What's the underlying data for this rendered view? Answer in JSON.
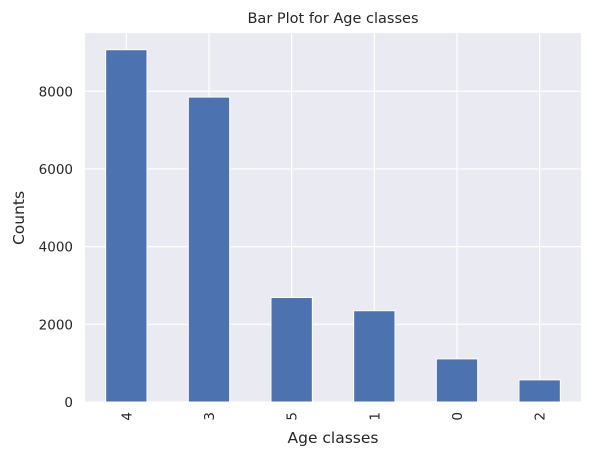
{
  "chart_data": {
    "type": "bar",
    "title": "Bar Plot for Age classes",
    "xlabel": "Age classes",
    "ylabel": "Counts",
    "categories": [
      "4",
      "3",
      "5",
      "1",
      "0",
      "2"
    ],
    "values": [
      9070,
      7850,
      2690,
      2350,
      1110,
      570
    ],
    "ylim": [
      0,
      9500
    ],
    "yticks": [
      0,
      2000,
      4000,
      6000,
      8000
    ],
    "ytick_labels": [
      "0",
      "2000",
      "4000",
      "6000",
      "8000"
    ],
    "grid": true,
    "xtick_rotation": "vertical",
    "colors": {
      "bar": "#4C72B0",
      "background": "#EAEAF2",
      "grid": "#ffffff"
    }
  }
}
